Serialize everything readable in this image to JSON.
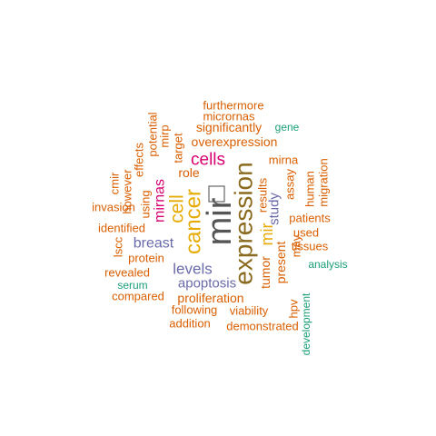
{
  "chart_data": {
    "type": "wordcloud",
    "title": "",
    "words": [
      {
        "text": "mir",
        "weight": 100,
        "color": "#555555"
      },
      {
        "text": "expression",
        "weight": 84,
        "color": "#8a6a1e"
      },
      {
        "text": "cancer",
        "weight": 62,
        "color": "#e6ab02"
      },
      {
        "text": "cell",
        "weight": 55,
        "color": "#e6ab02"
      },
      {
        "text": "mir",
        "weight": 48,
        "color": "#e6ab02"
      },
      {
        "text": "cells",
        "weight": 38,
        "color": "#d6006f"
      },
      {
        "text": "mirnas",
        "weight": 38,
        "color": "#d6006f"
      },
      {
        "text": "levels",
        "weight": 34,
        "color": "#6a6aaa"
      },
      {
        "text": "breast",
        "weight": 32,
        "color": "#6a6aaa"
      },
      {
        "text": "study",
        "weight": 32,
        "color": "#6a6aaa"
      },
      {
        "text": "apoptosis",
        "weight": 29,
        "color": "#6a6aaa"
      },
      {
        "text": "overexpression",
        "weight": 25,
        "color": "#d95f02"
      },
      {
        "text": "significantly",
        "weight": 25,
        "color": "#d95f02"
      },
      {
        "text": "proliferation",
        "weight": 25,
        "color": "#d95f02"
      },
      {
        "text": "patients",
        "weight": 24,
        "color": "#d95f02"
      },
      {
        "text": "tumor",
        "weight": 24,
        "color": "#d95f02"
      },
      {
        "text": "present",
        "weight": 22,
        "color": "#d95f02"
      },
      {
        "text": "role",
        "weight": 22,
        "color": "#d95f02"
      },
      {
        "text": "mirna",
        "weight": 22,
        "color": "#d95f02"
      },
      {
        "text": "results",
        "weight": 20,
        "color": "#d95f02"
      },
      {
        "text": "identified",
        "weight": 20,
        "color": "#d95f02"
      },
      {
        "text": "tissues",
        "weight": 20,
        "color": "#d95f02"
      },
      {
        "text": "viability",
        "weight": 20,
        "color": "#d95f02"
      },
      {
        "text": "demonstrated",
        "weight": 20,
        "color": "#d95f02"
      },
      {
        "text": "furthermore",
        "weight": 20,
        "color": "#d95f02"
      },
      {
        "text": "micrornas",
        "weight": 20,
        "color": "#d95f02"
      },
      {
        "text": "using",
        "weight": 20,
        "color": "#d95f02"
      },
      {
        "text": "potential",
        "weight": 20,
        "color": "#d95f02"
      },
      {
        "text": "target",
        "weight": 20,
        "color": "#d95f02"
      },
      {
        "text": "mirp",
        "weight": 20,
        "color": "#d95f02"
      },
      {
        "text": "effects",
        "weight": 20,
        "color": "#d95f02"
      },
      {
        "text": "however",
        "weight": 20,
        "color": "#d95f02"
      },
      {
        "text": "cmir",
        "weight": 20,
        "color": "#d95f02"
      },
      {
        "text": "invasion",
        "weight": 20,
        "color": "#d95f02"
      },
      {
        "text": "lscc",
        "weight": 20,
        "color": "#d95f02"
      },
      {
        "text": "protein",
        "weight": 20,
        "color": "#d95f02"
      },
      {
        "text": "revealed",
        "weight": 20,
        "color": "#d95f02"
      },
      {
        "text": "compared",
        "weight": 20,
        "color": "#d95f02"
      },
      {
        "text": "following",
        "weight": 20,
        "color": "#d95f02"
      },
      {
        "text": "addition",
        "weight": 20,
        "color": "#d95f02"
      },
      {
        "text": "used",
        "weight": 20,
        "color": "#d95f02"
      },
      {
        "text": "assay",
        "weight": 20,
        "color": "#d95f02"
      },
      {
        "text": "human",
        "weight": 20,
        "color": "#d95f02"
      },
      {
        "text": "migration",
        "weight": 20,
        "color": "#d95f02"
      },
      {
        "text": "may",
        "weight": 20,
        "color": "#d95f02"
      },
      {
        "text": "hpv",
        "weight": 20,
        "color": "#d95f02"
      },
      {
        "text": "gene",
        "weight": 18,
        "color": "#1b9e77"
      },
      {
        "text": "serum",
        "weight": 18,
        "color": "#1b9e77"
      },
      {
        "text": "analysis",
        "weight": 18,
        "color": "#1b9e77"
      },
      {
        "text": "development",
        "weight": 18,
        "color": "#1b9e77"
      }
    ]
  }
}
